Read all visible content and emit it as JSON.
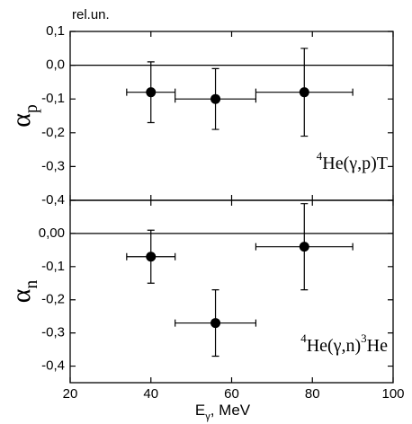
{
  "chart_data": [
    {
      "type": "scatter",
      "title": "rel.un.",
      "ylabel": [
        {
          "text": "α"
        },
        {
          "text": "p",
          "sub": true
        }
      ],
      "annotation": [
        {
          "text": "4",
          "sup": true
        },
        {
          "text": "He(γ,p)T"
        }
      ],
      "xlim": [
        20,
        100
      ],
      "ylim": [
        -0.4,
        0.1
      ],
      "yticks": [
        {
          "value": 0.1,
          "label": "0,1"
        },
        {
          "value": 0.0,
          "label": "0,0"
        },
        {
          "value": -0.1,
          "label": "-0,1"
        },
        {
          "value": -0.2,
          "label": "-0,2"
        },
        {
          "value": -0.3,
          "label": "-0,3"
        },
        {
          "value": -0.4,
          "label": "-0,4"
        }
      ],
      "zero_line": true,
      "series": [
        {
          "color": "#000000",
          "x": [
            40,
            56,
            78
          ],
          "values": [
            -0.08,
            -0.1,
            -0.08
          ],
          "xerr": [
            6,
            10,
            12
          ],
          "yerr": [
            0.09,
            0.09,
            0.13
          ]
        }
      ]
    },
    {
      "type": "scatter",
      "ylabel": [
        {
          "text": "α"
        },
        {
          "text": "n",
          "sub": true
        }
      ],
      "annotation": [
        {
          "text": "4",
          "sup": true
        },
        {
          "text": "He(γ,n)"
        },
        {
          "text": "3",
          "sup": true
        },
        {
          "text": "He"
        }
      ],
      "xlabel": [
        {
          "text": "E"
        },
        {
          "text": "γ",
          "sub": true
        },
        {
          "text": ", MeV"
        }
      ],
      "xlim": [
        20,
        100
      ],
      "ylim": [
        -0.45,
        0.1
      ],
      "xticks": [
        20,
        40,
        60,
        80,
        100
      ],
      "yticks": [
        {
          "value": 0.0,
          "label": "0,00"
        },
        {
          "value": -0.1,
          "label": "-0,1"
        },
        {
          "value": -0.2,
          "label": "-0,2"
        },
        {
          "value": -0.3,
          "label": "-0,3"
        },
        {
          "value": -0.4,
          "label": "-0,4"
        }
      ],
      "zero_line": true,
      "series": [
        {
          "color": "#000000",
          "x": [
            40,
            56,
            78
          ],
          "values": [
            -0.07,
            -0.27,
            -0.04
          ],
          "xerr": [
            6,
            10,
            12
          ],
          "yerr": [
            0.08,
            0.1,
            0.13
          ]
        }
      ]
    }
  ]
}
